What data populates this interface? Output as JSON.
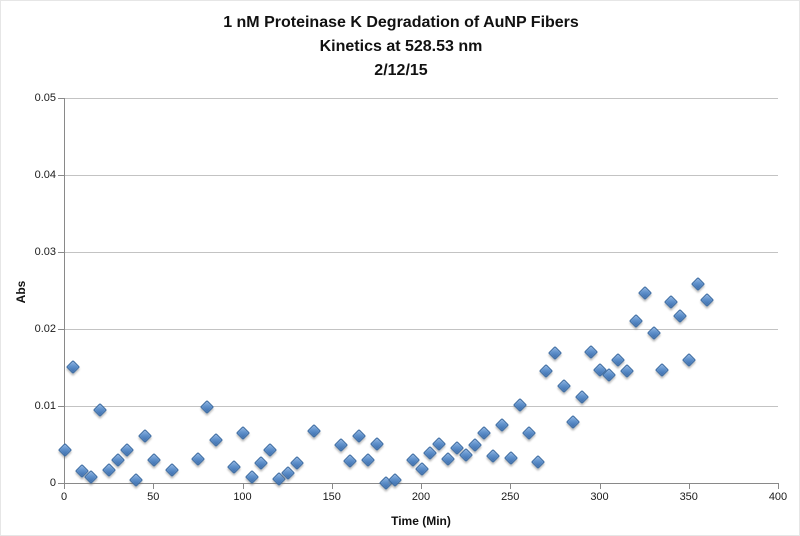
{
  "title": {
    "line1": "1 nM Proteinase K Degradation of AuNP Fibers",
    "line2": "Kinetics at 528.53 nm",
    "line3": "2/12/15"
  },
  "colors": {
    "marker_fill": "#4F81BD",
    "marker_border": "#38689F",
    "gridline": "#C3C3C3",
    "axis": "#898989",
    "background": "#FFFFFF",
    "text": "#111111"
  },
  "chart_data": {
    "type": "scatter",
    "title": "1 nM Proteinase K Degradation of AuNP Fibers Kinetics at 528.53 nm 2/12/15",
    "xlabel": "Time (Min)",
    "ylabel": "Abs",
    "xlim": [
      0,
      400
    ],
    "ylim": [
      0,
      0.05
    ],
    "x_ticks": [
      0,
      50,
      100,
      150,
      200,
      250,
      300,
      350,
      400
    ],
    "x_tick_labels": [
      "0",
      "50",
      "100",
      "150",
      "200",
      "250",
      "300",
      "350",
      "400"
    ],
    "y_ticks": [
      0,
      0.01,
      0.02,
      0.03,
      0.04,
      0.05
    ],
    "y_tick_labels": [
      "0",
      "0.01",
      "0.02",
      "0.03",
      "0.04",
      "0.05"
    ],
    "grid": "horizontal-only",
    "legend": "none",
    "marker": {
      "shape": "diamond",
      "fill": "#4F81BD",
      "border": "#38689F"
    },
    "series": [
      {
        "name": "Abs at 528.53 nm",
        "points": [
          [
            0,
            0.0044
          ],
          [
            5,
            0.0151
          ],
          [
            10,
            0.0016
          ],
          [
            15,
            0.0008
          ],
          [
            20,
            0.0095
          ],
          [
            25,
            0.0018
          ],
          [
            30,
            0.003
          ],
          [
            35,
            0.0044
          ],
          [
            40,
            0.0005
          ],
          [
            45,
            0.0062
          ],
          [
            50,
            0.003
          ],
          [
            60,
            0.0018
          ],
          [
            75,
            0.0032
          ],
          [
            80,
            0.01
          ],
          [
            85,
            0.0057
          ],
          [
            95,
            0.0021
          ],
          [
            100,
            0.0066
          ],
          [
            105,
            0.0008
          ],
          [
            110,
            0.0027
          ],
          [
            115,
            0.0044
          ],
          [
            120,
            0.0006
          ],
          [
            125,
            0.0014
          ],
          [
            130,
            0.0026
          ],
          [
            140,
            0.0068
          ],
          [
            155,
            0.005
          ],
          [
            160,
            0.0029
          ],
          [
            165,
            0.0062
          ],
          [
            170,
            0.003
          ],
          [
            175,
            0.0051
          ],
          [
            180,
            0.0001
          ],
          [
            185,
            0.0005
          ],
          [
            195,
            0.003
          ],
          [
            200,
            0.0019
          ],
          [
            205,
            0.004
          ],
          [
            210,
            0.0051
          ],
          [
            215,
            0.0032
          ],
          [
            220,
            0.0046
          ],
          [
            225,
            0.0037
          ],
          [
            230,
            0.005
          ],
          [
            235,
            0.0065
          ],
          [
            240,
            0.0036
          ],
          [
            245,
            0.0076
          ],
          [
            250,
            0.0033
          ],
          [
            255,
            0.0102
          ],
          [
            260,
            0.0065
          ],
          [
            265,
            0.0028
          ],
          [
            270,
            0.0146
          ],
          [
            275,
            0.017
          ],
          [
            280,
            0.0127
          ],
          [
            285,
            0.008
          ],
          [
            290,
            0.0112
          ],
          [
            295,
            0.0171
          ],
          [
            300,
            0.0147
          ],
          [
            305,
            0.0141
          ],
          [
            310,
            0.016
          ],
          [
            315,
            0.0146
          ],
          [
            320,
            0.0211
          ],
          [
            325,
            0.0247
          ],
          [
            330,
            0.0196
          ],
          [
            335,
            0.0148
          ],
          [
            340,
            0.0236
          ],
          [
            345,
            0.0217
          ],
          [
            350,
            0.0161
          ],
          [
            355,
            0.0259
          ],
          [
            360,
            0.0238
          ]
        ]
      }
    ]
  }
}
